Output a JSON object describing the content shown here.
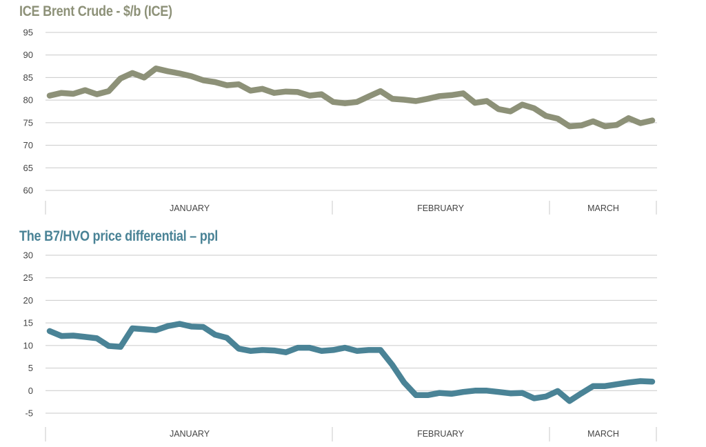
{
  "chart_data": [
    {
      "type": "line",
      "title": "ICE Brent Crude - $/b (ICE)",
      "ylim": [
        60,
        95
      ],
      "yticks": [
        "95",
        "90",
        "85",
        "80",
        "75",
        "70",
        "65",
        "60"
      ],
      "grid": true,
      "months": [
        "JANUARY",
        "FEBRUARY",
        "MARCH"
      ],
      "color": "#8d9178",
      "title_color": "#8d9178",
      "series": [
        {
          "values": [
            81,
            81.6,
            81.4,
            82.2,
            81.3,
            82,
            84.8,
            86,
            85,
            87,
            86.4,
            85.9,
            85.3,
            84.4,
            84,
            83.3,
            83.5,
            82.1,
            82.5,
            81.6,
            81.9,
            81.8,
            81,
            81.3,
            79.6,
            79.3,
            79.6,
            80.8,
            82,
            80.3,
            80.1,
            79.8,
            80.3,
            80.9,
            81.1,
            81.5,
            79.4,
            79.8,
            78,
            77.5,
            79,
            78.2,
            76.5,
            75.9,
            74.2,
            74.4,
            75.3,
            74.2,
            74.5,
            76,
            74.9,
            75.5
          ]
        }
      ]
    },
    {
      "type": "line",
      "title": "The B7/HVO price differential – ppl",
      "ylim": [
        -5,
        30
      ],
      "yticks": [
        "30",
        "25",
        "20",
        "15",
        "10",
        "5",
        "0",
        "-5"
      ],
      "grid": true,
      "months": [
        "JANUARY",
        "FEBRUARY",
        "MARCH"
      ],
      "color": "#4a8396",
      "title_color": "#4a8396",
      "series": [
        {
          "values": [
            13.2,
            12.1,
            12.2,
            11.9,
            11.6,
            9.9,
            9.7,
            13.8,
            13.6,
            13.4,
            14.3,
            14.8,
            14.2,
            14.1,
            12.4,
            11.7,
            9.3,
            8.8,
            9,
            8.9,
            8.5,
            9.5,
            9.5,
            8.8,
            9,
            9.5,
            8.8,
            9,
            9,
            5.7,
            1.8,
            -1,
            -1,
            -0.5,
            -0.7,
            -0.3,
            0,
            0,
            -0.3,
            -0.6,
            -0.5,
            -1.7,
            -1.3,
            -0.1,
            -2.3,
            -0.6,
            1,
            1,
            1.4,
            1.8,
            2.1,
            2
          ]
        }
      ]
    }
  ]
}
